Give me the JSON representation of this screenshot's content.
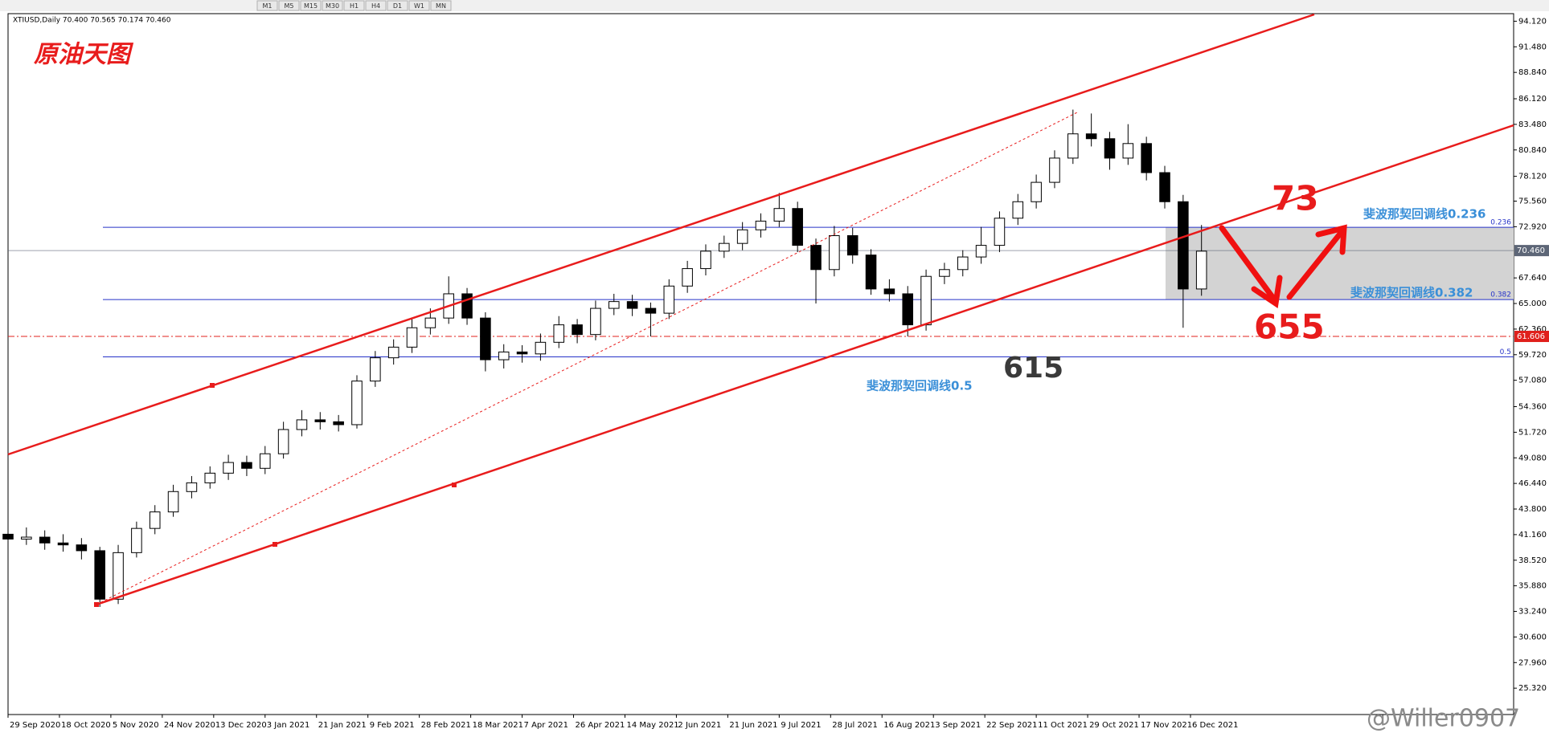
{
  "toolbar": {
    "buttons": [
      "M1",
      "M5",
      "M15",
      "M30",
      "H1",
      "H4",
      "D1",
      "W1",
      "MN"
    ]
  },
  "chart_data": {
    "type": "candlestick",
    "title": "原油天图",
    "subtitle": "XTIUSD,Daily 70.400 70.565 70.174 70.460",
    "x": [
      0,
      5,
      10,
      15,
      20,
      25,
      30,
      35,
      40,
      45,
      50,
      55,
      60,
      65,
      70,
      75,
      80,
      85,
      90,
      95,
      100,
      105,
      110,
      115,
      120,
      125,
      130,
      135,
      140,
      145,
      150,
      155,
      160,
      165,
      170,
      175,
      180,
      185,
      190,
      195,
      200,
      205,
      210,
      215,
      220,
      225,
      230,
      235,
      240,
      245,
      250,
      255,
      260,
      265,
      270,
      275,
      280,
      285,
      290,
      295,
      300,
      305,
      310,
      315,
      320,
      325
    ],
    "open": [
      41.2,
      40.7,
      40.9,
      40.3,
      40.1,
      39.5,
      34.5,
      39.3,
      41.8,
      43.5,
      45.6,
      46.5,
      47.5,
      48.6,
      48.0,
      49.5,
      52.0,
      53.0,
      52.8,
      52.5,
      57.0,
      59.4,
      60.5,
      62.5,
      63.5,
      66.0,
      63.5,
      59.2,
      60.0,
      59.8,
      61.0,
      62.8,
      61.8,
      64.5,
      65.2,
      64.5,
      64.0,
      66.8,
      68.6,
      70.4,
      71.2,
      72.6,
      73.5,
      74.8,
      71.0,
      68.5,
      72.0,
      70.0,
      66.5,
      66.0,
      62.8,
      67.8,
      68.5,
      69.8,
      71.0,
      73.8,
      75.5,
      77.5,
      80.0,
      82.5,
      82.0,
      80.0,
      81.5,
      78.5,
      75.5,
      66.5
    ],
    "high": [
      41.8,
      41.9,
      41.6,
      41.2,
      40.8,
      39.9,
      40.1,
      42.5,
      44.2,
      46.3,
      47.2,
      48.2,
      49.4,
      49.3,
      50.3,
      52.8,
      54.0,
      53.8,
      53.5,
      57.6,
      60.1,
      61.3,
      63.4,
      64.5,
      67.8,
      66.6,
      64.1,
      60.8,
      60.7,
      61.9,
      63.7,
      63.4,
      65.3,
      66.0,
      65.9,
      65.1,
      67.5,
      69.4,
      71.1,
      72.0,
      73.4,
      74.3,
      76.4,
      75.5,
      71.7,
      73.0,
      72.8,
      70.6,
      67.5,
      66.8,
      68.5,
      69.2,
      70.5,
      72.9,
      74.5,
      76.3,
      78.3,
      80.8,
      85.0,
      84.6,
      82.7,
      83.5,
      82.2,
      79.2,
      76.2,
      73.1
    ],
    "low": [
      39.8,
      40.1,
      39.6,
      39.4,
      38.6,
      33.7,
      34.0,
      38.8,
      41.2,
      43.0,
      44.9,
      45.9,
      46.8,
      47.2,
      47.4,
      49.0,
      51.3,
      52.0,
      51.8,
      52.1,
      56.4,
      58.7,
      59.9,
      61.8,
      62.9,
      62.8,
      58.0,
      58.3,
      58.9,
      59.1,
      60.4,
      60.9,
      61.2,
      63.8,
      63.7,
      61.6,
      63.4,
      66.1,
      67.9,
      69.7,
      70.5,
      71.8,
      72.9,
      70.3,
      65.0,
      67.8,
      69.1,
      65.9,
      65.2,
      61.6,
      62.2,
      67.0,
      67.8,
      69.1,
      70.3,
      73.1,
      74.8,
      76.9,
      79.4,
      81.2,
      78.8,
      79.3,
      77.7,
      74.8,
      62.5,
      65.8
    ],
    "close": [
      40.7,
      40.9,
      40.3,
      40.1,
      39.5,
      34.5,
      39.3,
      41.8,
      43.5,
      45.6,
      46.5,
      47.5,
      48.6,
      48.0,
      49.5,
      52.0,
      53.0,
      52.8,
      52.5,
      57.0,
      59.4,
      60.5,
      62.5,
      63.5,
      66.0,
      63.5,
      59.2,
      60.0,
      59.8,
      61.0,
      62.8,
      61.8,
      64.5,
      65.2,
      64.5,
      64.0,
      66.8,
      68.6,
      70.4,
      71.2,
      72.6,
      73.5,
      74.8,
      71.0,
      68.5,
      72.0,
      70.0,
      66.5,
      66.0,
      62.8,
      67.8,
      68.5,
      69.8,
      71.0,
      73.8,
      75.5,
      77.5,
      80.0,
      82.5,
      82.0,
      80.0,
      81.5,
      78.5,
      75.5,
      66.5,
      70.4
    ],
    "up_color": "#ffffff",
    "down_color": "#000000",
    "wick_color": "#000000",
    "xlim": [
      0,
      410
    ],
    "xticks": [
      {
        "value": 0,
        "label": "29 Sep 2020"
      },
      {
        "value": 14,
        "label": "18 Oct 2020"
      },
      {
        "value": 28,
        "label": "5 Nov 2020"
      },
      {
        "value": 42,
        "label": "24 Nov 2020"
      },
      {
        "value": 56,
        "label": "13 Dec 2020"
      },
      {
        "value": 70,
        "label": "3 Jan 2021"
      },
      {
        "value": 84,
        "label": "21 Jan 2021"
      },
      {
        "value": 98,
        "label": "9 Feb 2021"
      },
      {
        "value": 112,
        "label": "28 Feb 2021"
      },
      {
        "value": 126,
        "label": "18 Mar 2021"
      },
      {
        "value": 140,
        "label": "7 Apr 2021"
      },
      {
        "value": 154,
        "label": "26 Apr 2021"
      },
      {
        "value": 168,
        "label": "14 May 2021"
      },
      {
        "value": 182,
        "label": "2 Jun 2021"
      },
      {
        "value": 196,
        "label": "21 Jun 2021"
      },
      {
        "value": 210,
        "label": "9 Jul 2021"
      },
      {
        "value": 224,
        "label": "28 Jul 2021"
      },
      {
        "value": 238,
        "label": "16 Aug 2021"
      },
      {
        "value": 252,
        "label": "3 Sep 2021"
      },
      {
        "value": 266,
        "label": "22 Sep 2021"
      },
      {
        "value": 280,
        "label": "11 Oct 2021"
      },
      {
        "value": 294,
        "label": "29 Oct 2021"
      },
      {
        "value": 308,
        "label": "17 Nov 2021"
      },
      {
        "value": 322,
        "label": "6 Dec 2021"
      }
    ],
    "ylim": [
      22.6,
      94.9
    ],
    "yticks": [
      {
        "value": 94.12,
        "label": "94.120"
      },
      {
        "value": 91.48,
        "label": "91.480"
      },
      {
        "value": 88.84,
        "label": "88.840"
      },
      {
        "value": 86.12,
        "label": "86.120"
      },
      {
        "value": 83.48,
        "label": "83.480"
      },
      {
        "value": 80.84,
        "label": "80.840"
      },
      {
        "value": 78.12,
        "label": "78.120"
      },
      {
        "value": 75.56,
        "label": "75.560"
      },
      {
        "value": 72.92,
        "label": "72.920"
      },
      {
        "value": 67.64,
        "label": "67.640"
      },
      {
        "value": 65,
        "label": "65.000"
      },
      {
        "value": 62.36,
        "label": "62.360"
      },
      {
        "value": 59.72,
        "label": "59.720"
      },
      {
        "value": 57.08,
        "label": "57.080"
      },
      {
        "value": 54.36,
        "label": "54.360"
      },
      {
        "value": 51.72,
        "label": "51.720"
      },
      {
        "value": 49.08,
        "label": "49.080"
      },
      {
        "value": 46.44,
        "label": "46.440"
      },
      {
        "value": 43.8,
        "label": "43.800"
      },
      {
        "value": 41.16,
        "label": "41.160"
      },
      {
        "value": 38.52,
        "label": "38.520"
      },
      {
        "value": 35.88,
        "label": "35.880"
      },
      {
        "value": 33.24,
        "label": "33.240"
      },
      {
        "value": 30.6,
        "label": "30.600"
      },
      {
        "value": 27.96,
        "label": "27.960"
      },
      {
        "value": 25.32,
        "label": "25.320"
      }
    ],
    "grid": false,
    "levels": [
      {
        "value": 72.86,
        "label": "0.236"
      },
      {
        "value": 65.41,
        "label": "0.382"
      },
      {
        "value": 59.5,
        "label": "0.5"
      }
    ],
    "level_color": "#2633c8",
    "price_marks": [
      {
        "value": 70.46,
        "label": "70.460",
        "color": "#5d6677"
      },
      {
        "value": 61.606,
        "label": "61.606",
        "color": "#e0201c"
      }
    ],
    "annotations": [
      "73",
      "655",
      "615",
      "斐波那契回调线0.236",
      "斐波那契回调线0.382",
      "斐波那契回调线0.5",
      "@Willer0907"
    ]
  }
}
